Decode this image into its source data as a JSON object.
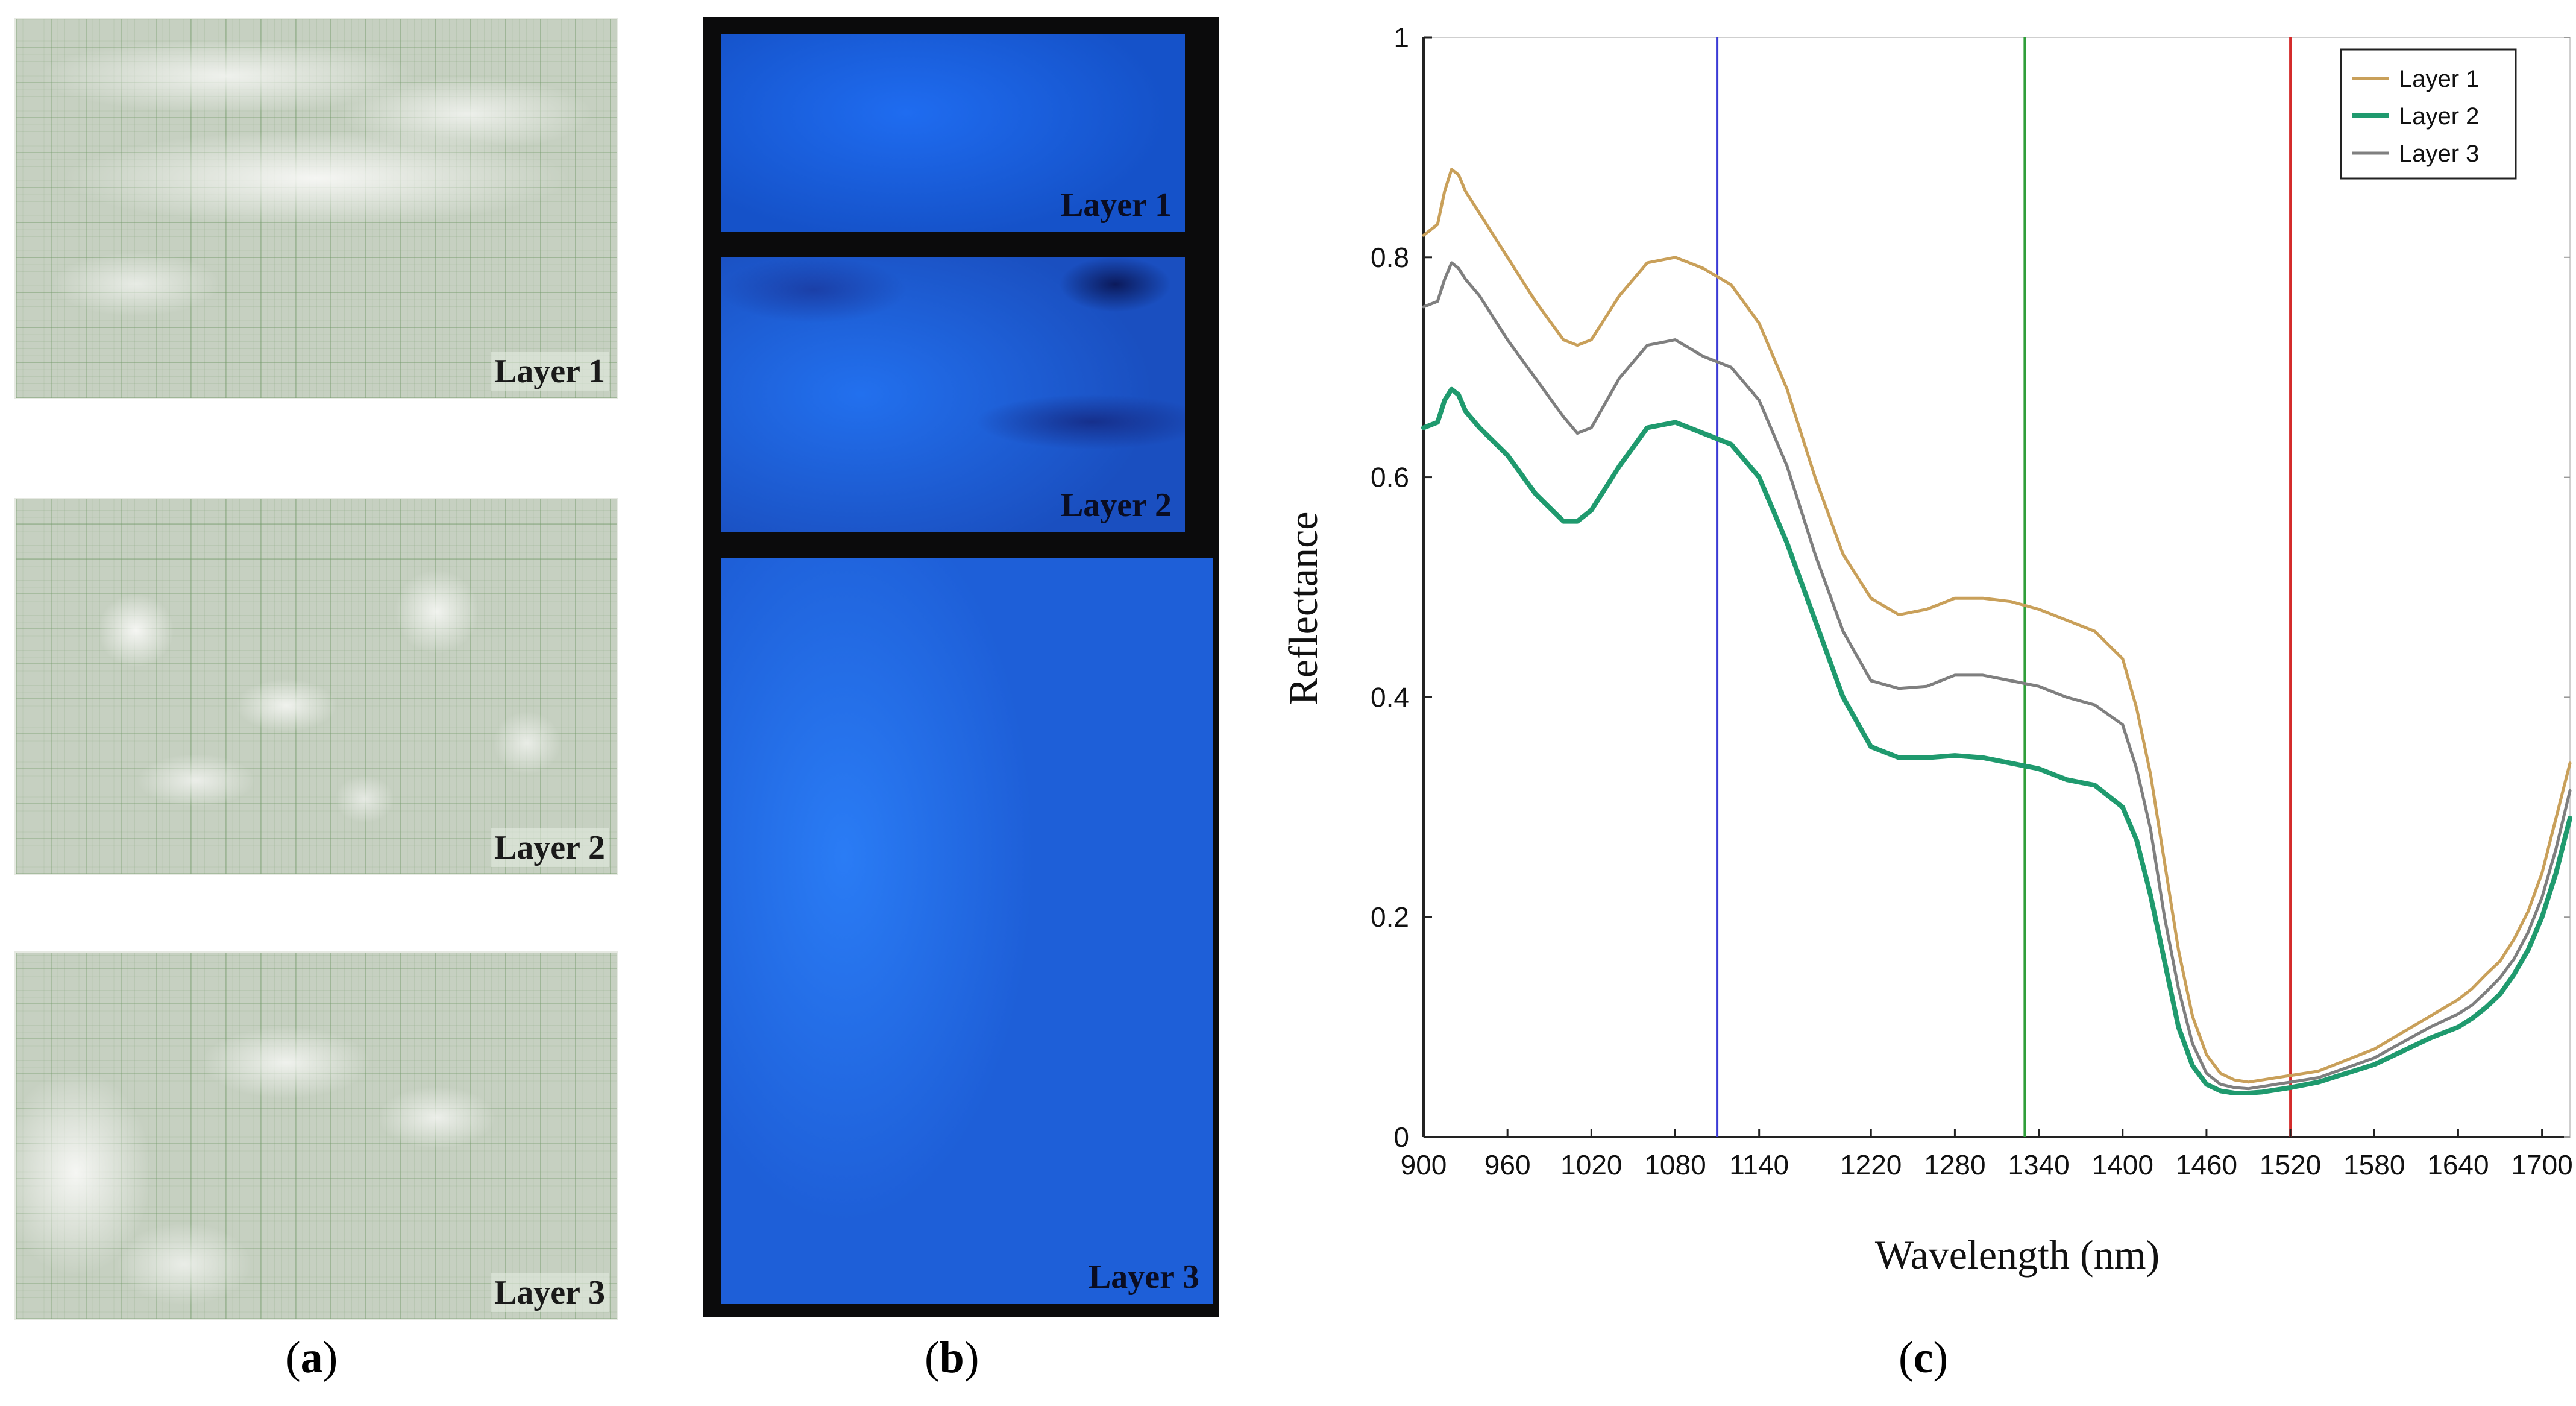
{
  "panels": {
    "a": {
      "caption": "a",
      "photos": [
        "Layer 1",
        "Layer 2",
        "Layer 3"
      ]
    },
    "b": {
      "caption": "b",
      "labels": [
        "Layer 1",
        "Layer 2",
        "Layer 3"
      ]
    },
    "c": {
      "caption": "c"
    }
  },
  "chart_data": {
    "type": "line",
    "title": "",
    "xlabel": "Wavelength (nm)",
    "ylabel": "Reflectance",
    "xlim": [
      900,
      1720
    ],
    "ylim": [
      0,
      1
    ],
    "xticks": [
      900,
      960,
      1020,
      1080,
      1140,
      1220,
      1280,
      1340,
      1400,
      1460,
      1520,
      1580,
      1640,
      1700
    ],
    "yticks": [
      0,
      0.2,
      0.4,
      0.6,
      0.8,
      1
    ],
    "ytick_labels": [
      "0",
      "0.2",
      "0.4",
      "0.6",
      "0.8",
      "1"
    ],
    "legend": "top-right",
    "vertical_lines": [
      {
        "x": 1110,
        "color": "#3b3bd6"
      },
      {
        "x": 1330,
        "color": "#2f9e3a"
      },
      {
        "x": 1520,
        "color": "#d42b2b"
      }
    ],
    "x": [
      900,
      910,
      915,
      920,
      925,
      930,
      940,
      960,
      980,
      1000,
      1010,
      1020,
      1040,
      1060,
      1080,
      1100,
      1120,
      1140,
      1160,
      1180,
      1200,
      1220,
      1240,
      1260,
      1280,
      1300,
      1320,
      1340,
      1360,
      1380,
      1400,
      1410,
      1420,
      1430,
      1440,
      1450,
      1460,
      1470,
      1480,
      1490,
      1500,
      1510,
      1520,
      1540,
      1560,
      1580,
      1600,
      1620,
      1640,
      1650,
      1660,
      1670,
      1680,
      1690,
      1700,
      1710,
      1720
    ],
    "series": [
      {
        "name": "Layer 1",
        "color": "#c9a05a",
        "values": [
          0.82,
          0.83,
          0.86,
          0.88,
          0.875,
          0.86,
          0.84,
          0.8,
          0.76,
          0.725,
          0.72,
          0.725,
          0.765,
          0.795,
          0.8,
          0.79,
          0.775,
          0.74,
          0.68,
          0.6,
          0.53,
          0.49,
          0.475,
          0.48,
          0.49,
          0.49,
          0.487,
          0.48,
          0.47,
          0.46,
          0.435,
          0.39,
          0.33,
          0.25,
          0.17,
          0.11,
          0.075,
          0.058,
          0.052,
          0.05,
          0.052,
          0.054,
          0.056,
          0.06,
          0.07,
          0.08,
          0.095,
          0.11,
          0.125,
          0.135,
          0.148,
          0.16,
          0.18,
          0.205,
          0.24,
          0.29,
          0.34
        ]
      },
      {
        "name": "Layer 2",
        "color": "#1f9a6e",
        "values": [
          0.645,
          0.65,
          0.67,
          0.68,
          0.675,
          0.66,
          0.645,
          0.62,
          0.585,
          0.56,
          0.56,
          0.57,
          0.61,
          0.645,
          0.65,
          0.64,
          0.63,
          0.6,
          0.54,
          0.47,
          0.4,
          0.355,
          0.345,
          0.345,
          0.347,
          0.345,
          0.34,
          0.335,
          0.325,
          0.32,
          0.3,
          0.27,
          0.22,
          0.16,
          0.1,
          0.065,
          0.048,
          0.042,
          0.04,
          0.04,
          0.041,
          0.043,
          0.045,
          0.05,
          0.058,
          0.066,
          0.078,
          0.09,
          0.1,
          0.108,
          0.118,
          0.13,
          0.148,
          0.17,
          0.2,
          0.24,
          0.29
        ]
      },
      {
        "name": "Layer 3",
        "color": "#7f7f7f",
        "values": [
          0.755,
          0.76,
          0.78,
          0.795,
          0.79,
          0.78,
          0.765,
          0.725,
          0.69,
          0.655,
          0.64,
          0.645,
          0.69,
          0.72,
          0.725,
          0.71,
          0.7,
          0.67,
          0.61,
          0.53,
          0.46,
          0.415,
          0.408,
          0.41,
          0.42,
          0.42,
          0.415,
          0.41,
          0.4,
          0.393,
          0.375,
          0.335,
          0.28,
          0.2,
          0.135,
          0.085,
          0.058,
          0.048,
          0.045,
          0.044,
          0.046,
          0.048,
          0.05,
          0.054,
          0.063,
          0.072,
          0.086,
          0.1,
          0.112,
          0.12,
          0.132,
          0.145,
          0.162,
          0.186,
          0.218,
          0.262,
          0.315
        ]
      }
    ]
  }
}
